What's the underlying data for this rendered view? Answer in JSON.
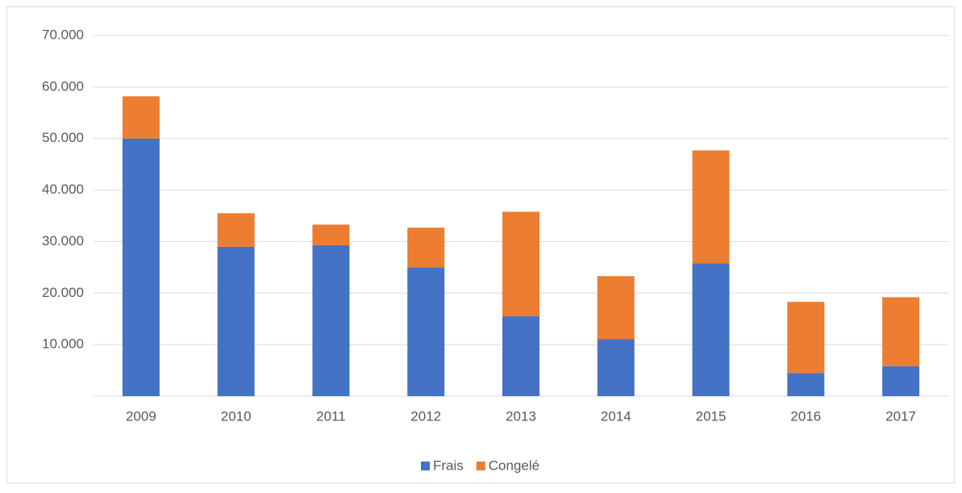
{
  "chart_data": {
    "type": "bar",
    "stacked": true,
    "categories": [
      "2009",
      "2010",
      "2011",
      "2012",
      "2013",
      "2014",
      "2015",
      "2016",
      "2017"
    ],
    "series": [
      {
        "name": "Frais",
        "color": "#4472c4",
        "values": [
          50000,
          29000,
          29300,
          25000,
          15500,
          11100,
          25800,
          4500,
          5800
        ]
      },
      {
        "name": "Congelé",
        "color": "#ed7d31",
        "values": [
          8200,
          6500,
          4000,
          7700,
          20300,
          12200,
          21900,
          13800,
          13400
        ]
      }
    ],
    "ylim": [
      0,
      70000
    ],
    "yticks": [
      {
        "value": 10000,
        "label": "10.000"
      },
      {
        "value": 20000,
        "label": "20.000"
      },
      {
        "value": 30000,
        "label": "30.000"
      },
      {
        "value": 40000,
        "label": "40.000"
      },
      {
        "value": 50000,
        "label": "50.000"
      },
      {
        "value": 60000,
        "label": "60.000"
      },
      {
        "value": 70000,
        "label": "70.000"
      }
    ],
    "grid": true,
    "legend": "bottom"
  }
}
